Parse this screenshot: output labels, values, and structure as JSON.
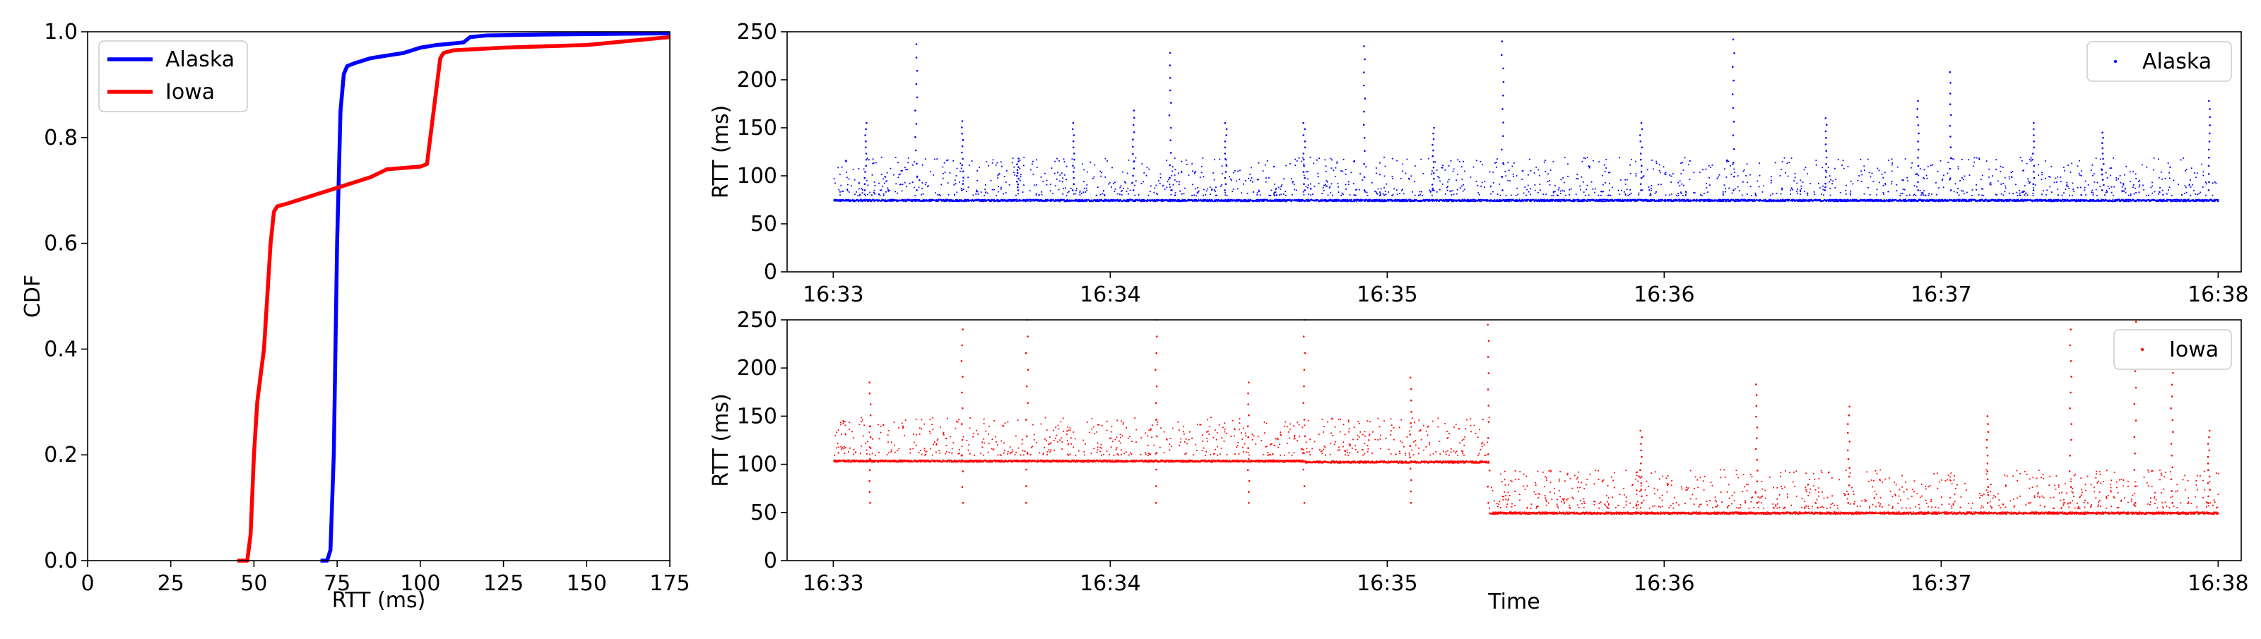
{
  "chart_data": [
    {
      "type": "line",
      "name": "cdf-panel",
      "xlabel": "RTT (ms)",
      "ylabel": "CDF",
      "xlim": [
        0,
        175
      ],
      "ylim": [
        0.0,
        1.0
      ],
      "x_ticks": [
        "0",
        "25",
        "50",
        "75",
        "100",
        "125",
        "150",
        "175"
      ],
      "x_tick_values": [
        0,
        25,
        50,
        75,
        100,
        125,
        150,
        175
      ],
      "y_ticks": [
        "0.0",
        "0.2",
        "0.4",
        "0.6",
        "0.8",
        "1.0"
      ],
      "y_tick_values": [
        0.0,
        0.2,
        0.4,
        0.6,
        0.8,
        1.0
      ],
      "grid": false,
      "legend_position": "top-left",
      "series": [
        {
          "name": "Alaska",
          "color": "#0000ff",
          "points": [
            [
              70,
              0.0
            ],
            [
              72,
              0.0
            ],
            [
              73,
              0.02
            ],
            [
              74,
              0.2
            ],
            [
              75,
              0.6
            ],
            [
              76,
              0.85
            ],
            [
              77,
              0.92
            ],
            [
              78,
              0.935
            ],
            [
              80,
              0.94
            ],
            [
              85,
              0.95
            ],
            [
              90,
              0.955
            ],
            [
              95,
              0.96
            ],
            [
              100,
              0.97
            ],
            [
              105,
              0.975
            ],
            [
              110,
              0.978
            ],
            [
              113,
              0.98
            ],
            [
              115,
              0.99
            ],
            [
              120,
              0.993
            ],
            [
              140,
              0.995
            ],
            [
              175,
              0.997
            ]
          ]
        },
        {
          "name": "Iowa",
          "color": "#ff0000",
          "points": [
            [
              45,
              0.0
            ],
            [
              48,
              0.0
            ],
            [
              49,
              0.05
            ],
            [
              50,
              0.2
            ],
            [
              51,
              0.3
            ],
            [
              52,
              0.35
            ],
            [
              53,
              0.4
            ],
            [
              54,
              0.5
            ],
            [
              55,
              0.6
            ],
            [
              56,
              0.66
            ],
            [
              57,
              0.67
            ],
            [
              60,
              0.675
            ],
            [
              65,
              0.685
            ],
            [
              70,
              0.695
            ],
            [
              75,
              0.705
            ],
            [
              80,
              0.715
            ],
            [
              85,
              0.725
            ],
            [
              90,
              0.74
            ],
            [
              100,
              0.745
            ],
            [
              102,
              0.75
            ],
            [
              103,
              0.8
            ],
            [
              104,
              0.85
            ],
            [
              105,
              0.9
            ],
            [
              106,
              0.95
            ],
            [
              107,
              0.96
            ],
            [
              110,
              0.965
            ],
            [
              125,
              0.97
            ],
            [
              150,
              0.975
            ],
            [
              175,
              0.99
            ]
          ]
        }
      ]
    },
    {
      "type": "scatter",
      "name": "alaska-timeseries",
      "xlabel": "",
      "ylabel": "RTT (ms)",
      "xlim": [
        "16:32:50",
        "16:38:05"
      ],
      "ylim": [
        0,
        250
      ],
      "x_ticks": [
        "16:33",
        "16:34",
        "16:35",
        "16:36",
        "16:37",
        "16:38"
      ],
      "x_tick_values": [
        "16:33",
        "16:34",
        "16:35",
        "16:36",
        "16:37",
        "16:38"
      ],
      "y_ticks": [
        "0",
        "50",
        "100",
        "150",
        "200",
        "250"
      ],
      "y_tick_values": [
        0,
        50,
        100,
        150,
        200,
        250
      ],
      "grid": false,
      "legend_position": "top-right",
      "series": [
        {
          "name": "Alaska",
          "color": "#0000ff",
          "time_range": [
            "16:33:00",
            "16:38:00"
          ],
          "baseline_ms": 75,
          "typical_spike_range_ms": [
            80,
            120
          ],
          "tall_spikes": [
            {
              "time": "16:33:07",
              "rtt_ms": 155
            },
            {
              "time": "16:33:18",
              "rtt_ms": 237
            },
            {
              "time": "16:33:28",
              "rtt_ms": 157
            },
            {
              "time": "16:33:40",
              "rtt_ms": 118
            },
            {
              "time": "16:33:52",
              "rtt_ms": 155
            },
            {
              "time": "16:34:05",
              "rtt_ms": 168
            },
            {
              "time": "16:34:13",
              "rtt_ms": 228
            },
            {
              "time": "16:34:25",
              "rtt_ms": 155
            },
            {
              "time": "16:34:42",
              "rtt_ms": 155
            },
            {
              "time": "16:34:55",
              "rtt_ms": 235
            },
            {
              "time": "16:35:10",
              "rtt_ms": 150
            },
            {
              "time": "16:35:25",
              "rtt_ms": 240
            },
            {
              "time": "16:35:55",
              "rtt_ms": 155
            },
            {
              "time": "16:36:15",
              "rtt_ms": 242
            },
            {
              "time": "16:36:35",
              "rtt_ms": 160
            },
            {
              "time": "16:36:55",
              "rtt_ms": 178
            },
            {
              "time": "16:37:02",
              "rtt_ms": 208
            },
            {
              "time": "16:37:20",
              "rtt_ms": 155
            },
            {
              "time": "16:37:35",
              "rtt_ms": 145
            },
            {
              "time": "16:37:58",
              "rtt_ms": 178
            }
          ]
        }
      ]
    },
    {
      "type": "scatter",
      "name": "iowa-timeseries",
      "xlabel": "Time",
      "ylabel": "RTT (ms)",
      "xlim": [
        "16:32:50",
        "16:38:05"
      ],
      "ylim": [
        0,
        250
      ],
      "x_ticks": [
        "16:33",
        "16:34",
        "16:35",
        "16:36",
        "16:37",
        "16:38"
      ],
      "x_tick_values": [
        "16:33",
        "16:34",
        "16:35",
        "16:36",
        "16:37",
        "16:38"
      ],
      "y_ticks": [
        "0",
        "50",
        "100",
        "150",
        "200",
        "250"
      ],
      "y_tick_values": [
        0,
        50,
        100,
        150,
        200,
        250
      ],
      "grid": false,
      "legend_position": "top-right",
      "series": [
        {
          "name": "Iowa",
          "color": "#ff0000",
          "segments": [
            {
              "time_range": [
                "16:33:00",
                "16:34:42"
              ],
              "baseline_ms": 104,
              "typical_spike_range_ms": [
                110,
                150
              ]
            },
            {
              "time_range": [
                "16:34:42",
                "16:35:22"
              ],
              "baseline_ms": 103,
              "typical_spike_range_ms": [
                110,
                150
              ]
            },
            {
              "time_range": [
                "16:35:22",
                "16:38:00"
              ],
              "baseline_ms": 50,
              "typical_spike_range_ms": [
                55,
                95
              ]
            }
          ],
          "tall_spikes": [
            {
              "time": "16:33:08",
              "rtt_ms": 185
            },
            {
              "time": "16:33:28",
              "rtt_ms": 240
            },
            {
              "time": "16:33:42",
              "rtt_ms": 250
            },
            {
              "time": "16:34:10",
              "rtt_ms": 250
            },
            {
              "time": "16:34:30",
              "rtt_ms": 185
            },
            {
              "time": "16:34:42",
              "rtt_ms": 250
            },
            {
              "time": "16:35:05",
              "rtt_ms": 190
            },
            {
              "time": "16:35:22",
              "rtt_ms": 245
            },
            {
              "time": "16:35:55",
              "rtt_ms": 135
            },
            {
              "time": "16:36:20",
              "rtt_ms": 183
            },
            {
              "time": "16:36:40",
              "rtt_ms": 160
            },
            {
              "time": "16:37:10",
              "rtt_ms": 150
            },
            {
              "time": "16:37:28",
              "rtt_ms": 240
            },
            {
              "time": "16:37:42",
              "rtt_ms": 248
            },
            {
              "time": "16:37:50",
              "rtt_ms": 195
            },
            {
              "time": "16:37:58",
              "rtt_ms": 135
            }
          ]
        }
      ]
    }
  ]
}
